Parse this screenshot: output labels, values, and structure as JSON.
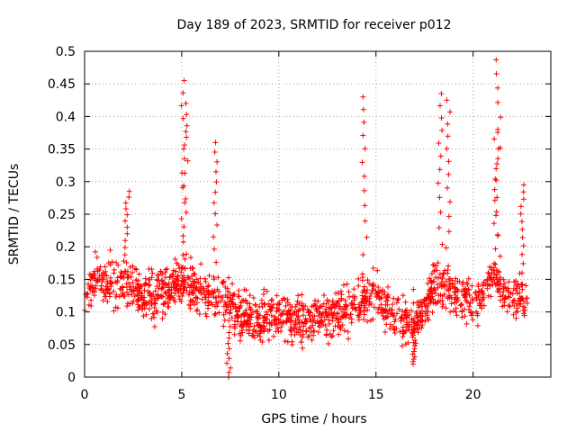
{
  "chart_data": {
    "type": "scatter",
    "title": "Day 189 of 2023, SRMTID for receiver p012",
    "xlabel": "GPS time / hours",
    "ylabel": "SRMTID / TECUs",
    "xlim": [
      0,
      24
    ],
    "ylim": [
      0,
      0.5
    ],
    "xticks": [
      0,
      5,
      10,
      15,
      20
    ],
    "xtick_labels": [
      "0",
      "5",
      "10",
      "15",
      "20"
    ],
    "yticks": [
      0,
      0.05,
      0.1,
      0.15,
      0.2,
      0.25,
      0.3,
      0.35,
      0.4,
      0.45,
      0.5
    ],
    "ytick_labels": [
      "0",
      "0.05",
      "0.1",
      "0.15",
      "0.2",
      "0.25",
      "0.3",
      "0.35",
      "0.4",
      "0.45",
      "0.5"
    ],
    "grid": true,
    "marker": "+",
    "color": "#ff0000",
    "series": [
      {
        "name": "SRMTID",
        "baseline": [
          [
            0.0,
            0.12
          ],
          [
            0.5,
            0.15
          ],
          [
            1.0,
            0.14
          ],
          [
            2.0,
            0.15
          ],
          [
            3.0,
            0.12
          ],
          [
            4.0,
            0.13
          ],
          [
            5.0,
            0.15
          ],
          [
            6.0,
            0.13
          ],
          [
            7.0,
            0.12
          ],
          [
            8.0,
            0.1
          ],
          [
            9.0,
            0.09
          ],
          [
            10.0,
            0.1
          ],
          [
            11.0,
            0.085
          ],
          [
            12.0,
            0.09
          ],
          [
            13.0,
            0.1
          ],
          [
            14.0,
            0.11
          ],
          [
            15.0,
            0.13
          ],
          [
            16.0,
            0.09
          ],
          [
            17.0,
            0.08
          ],
          [
            18.0,
            0.14
          ],
          [
            19.0,
            0.13
          ],
          [
            20.0,
            0.11
          ],
          [
            21.0,
            0.15
          ],
          [
            22.0,
            0.12
          ],
          [
            22.8,
            0.12
          ]
        ],
        "peaks": [
          {
            "x": 5.1,
            "y": 0.455
          },
          {
            "x": 5.2,
            "y": 0.42
          },
          {
            "x": 6.7,
            "y": 0.36
          },
          {
            "x": 14.4,
            "y": 0.43
          },
          {
            "x": 18.3,
            "y": 0.435
          },
          {
            "x": 18.7,
            "y": 0.425
          },
          {
            "x": 21.3,
            "y": 0.487
          },
          {
            "x": 21.2,
            "y": 0.38
          },
          {
            "x": 2.2,
            "y": 0.285
          },
          {
            "x": 7.4,
            "y": 0.0
          },
          {
            "x": 17.0,
            "y": 0.02
          },
          {
            "x": 22.5,
            "y": 0.295
          }
        ]
      }
    ]
  }
}
